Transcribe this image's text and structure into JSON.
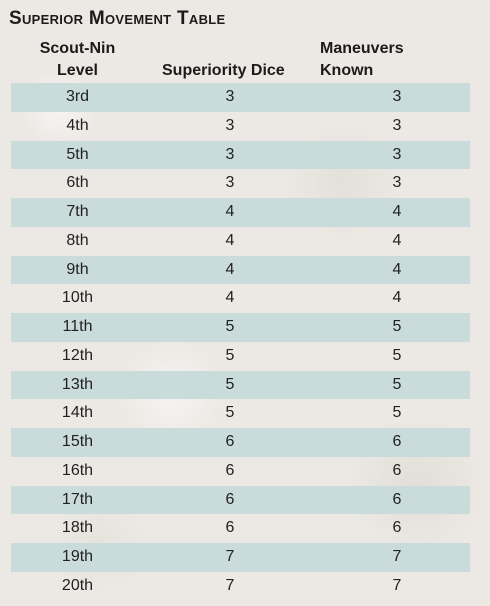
{
  "table": {
    "title": "Superior Movement Table",
    "headers": {
      "level_line1": "Scout-Nin",
      "level_line2": "Level",
      "dice": "Superiority Dice",
      "maneuvers_line1": "Maneuvers",
      "maneuvers_line2": "Known"
    },
    "rows": [
      {
        "level": "3rd",
        "dice": "3",
        "maneuvers": "3"
      },
      {
        "level": "4th",
        "dice": "3",
        "maneuvers": "3"
      },
      {
        "level": "5th",
        "dice": "3",
        "maneuvers": "3"
      },
      {
        "level": "6th",
        "dice": "3",
        "maneuvers": "3"
      },
      {
        "level": "7th",
        "dice": "4",
        "maneuvers": "4"
      },
      {
        "level": "8th",
        "dice": "4",
        "maneuvers": "4"
      },
      {
        "level": "9th",
        "dice": "4",
        "maneuvers": "4"
      },
      {
        "level": "10th",
        "dice": "4",
        "maneuvers": "4"
      },
      {
        "level": "11th",
        "dice": "5",
        "maneuvers": "5"
      },
      {
        "level": "12th",
        "dice": "5",
        "maneuvers": "5"
      },
      {
        "level": "13th",
        "dice": "5",
        "maneuvers": "5"
      },
      {
        "level": "14th",
        "dice": "5",
        "maneuvers": "5"
      },
      {
        "level": "15th",
        "dice": "6",
        "maneuvers": "6"
      },
      {
        "level": "16th",
        "dice": "6",
        "maneuvers": "6"
      },
      {
        "level": "17th",
        "dice": "6",
        "maneuvers": "6"
      },
      {
        "level": "18th",
        "dice": "6",
        "maneuvers": "6"
      },
      {
        "level": "19th",
        "dice": "7",
        "maneuvers": "7"
      },
      {
        "level": "20th",
        "dice": "7",
        "maneuvers": "7"
      }
    ]
  },
  "colors": {
    "background": "#ece9e4",
    "row_shade": "#c9dbdb",
    "text": "#1b1b1b"
  }
}
